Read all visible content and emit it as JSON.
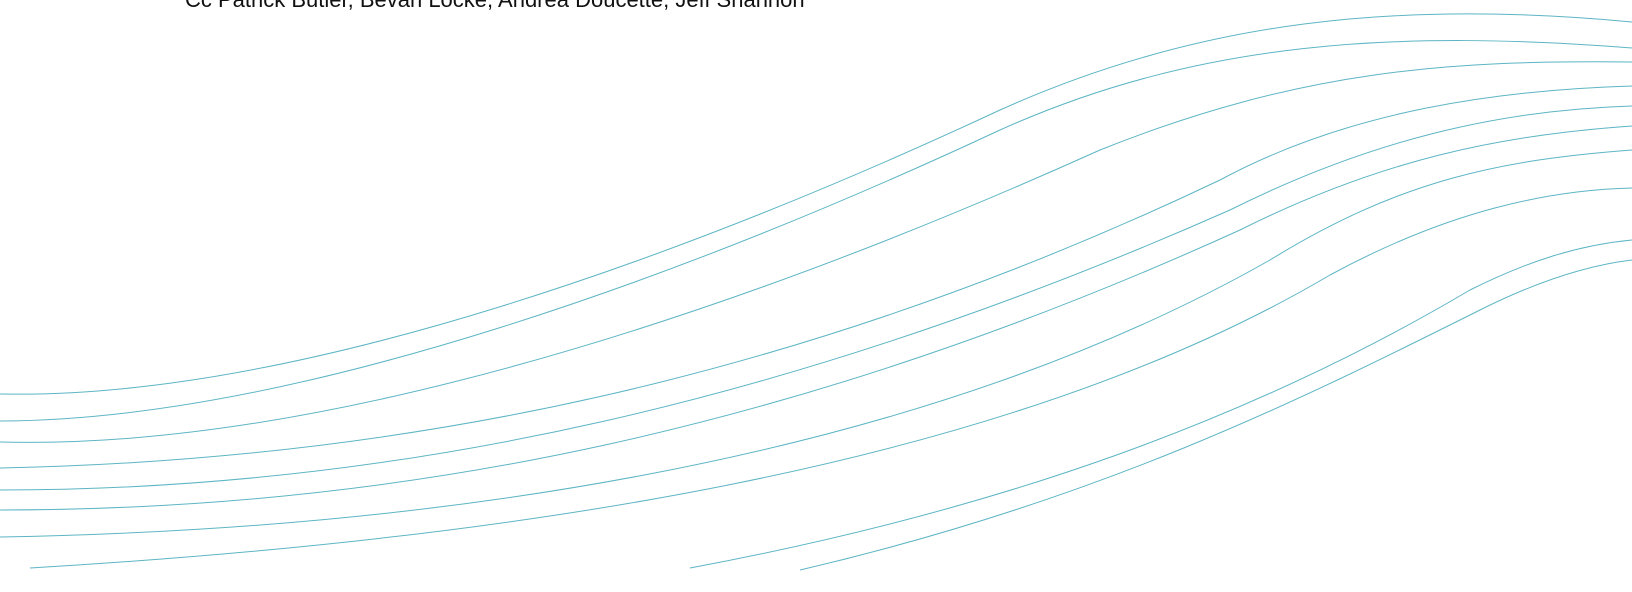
{
  "cc_line": "Cc Patrick Butler, Bevan Locke, Andrea Doucette, Jeff Shannon"
}
